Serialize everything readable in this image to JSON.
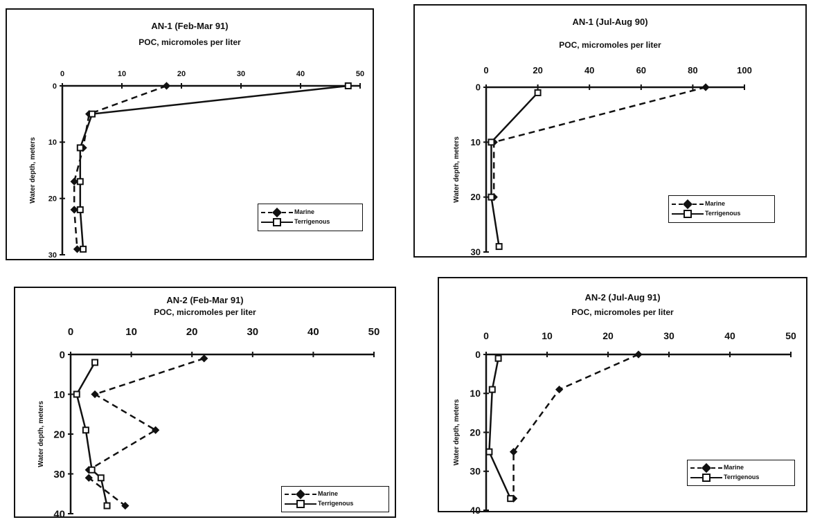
{
  "chart_data": [
    {
      "type": "line",
      "title": "AN-1 (Feb-Mar 91)",
      "subtitle": "POC, micromoles per liter",
      "xlabel": "POC, micromoles per liter",
      "ylabel": "Water depth, meters",
      "xlim": [
        0,
        50
      ],
      "ylim": [
        0,
        30
      ],
      "xticks": [
        "0",
        "10",
        "20",
        "30",
        "40",
        "50"
      ],
      "yticks": [
        "0",
        "10",
        "20",
        "30"
      ],
      "legend_position": "bottom-right",
      "series": [
        {
          "name": "Marine",
          "marker": "diamond",
          "dash": true,
          "points": [
            [
              17.5,
              0
            ],
            [
              4.5,
              5
            ],
            [
              3.5,
              11
            ],
            [
              2,
              17
            ],
            [
              2,
              22
            ],
            [
              2.5,
              29
            ]
          ]
        },
        {
          "name": "Terrigenous",
          "marker": "square",
          "dash": false,
          "points": [
            [
              48,
              0
            ],
            [
              5,
              5
            ],
            [
              3,
              11
            ],
            [
              3,
              17
            ],
            [
              3,
              22
            ],
            [
              3.5,
              29
            ]
          ]
        }
      ]
    },
    {
      "type": "line",
      "title": "AN-1 (Jul-Aug 90)",
      "subtitle": "POC, micromoles per liter",
      "xlabel": "POC, micromoles per liter",
      "ylabel": "Water depth, meters",
      "xlim": [
        0,
        100
      ],
      "ylim": [
        0,
        30
      ],
      "xticks": [
        "0",
        "20",
        "40",
        "60",
        "80",
        "100"
      ],
      "yticks": [
        "0",
        "10",
        "20",
        "30"
      ],
      "legend_position": "bottom-right",
      "series": [
        {
          "name": "Marine",
          "marker": "diamond",
          "dash": true,
          "points": [
            [
              85,
              0
            ],
            [
              3,
              10
            ],
            [
              3,
              20
            ]
          ]
        },
        {
          "name": "Terrigenous",
          "marker": "square",
          "dash": false,
          "points": [
            [
              20,
              1
            ],
            [
              2,
              10
            ],
            [
              2,
              20
            ],
            [
              5,
              29
            ]
          ]
        }
      ]
    },
    {
      "type": "line",
      "title": "AN-2 (Feb-Mar 91)",
      "subtitle": "POC, micromoles per liter",
      "xlabel": "POC, micromoles per liter",
      "ylabel": "Water depth, meters",
      "xlim": [
        0,
        50
      ],
      "ylim": [
        0,
        40
      ],
      "xticks": [
        "0",
        "10",
        "20",
        "30",
        "40",
        "50"
      ],
      "yticks": [
        "0",
        "10",
        "20",
        "30",
        "40"
      ],
      "legend_position": "bottom-right",
      "series": [
        {
          "name": "Marine",
          "marker": "diamond",
          "dash": true,
          "points": [
            [
              22,
              1
            ],
            [
              4,
              10
            ],
            [
              14,
              19
            ],
            [
              3,
              29
            ],
            [
              3,
              31
            ],
            [
              9,
              38
            ]
          ]
        },
        {
          "name": "Terrigenous",
          "marker": "square",
          "dash": false,
          "points": [
            [
              4,
              2
            ],
            [
              1,
              10
            ],
            [
              2.5,
              19
            ],
            [
              3.5,
              29
            ],
            [
              5,
              31
            ],
            [
              6,
              38
            ]
          ]
        }
      ]
    },
    {
      "type": "line",
      "title": "AN-2 (Jul-Aug 91)",
      "subtitle": "POC, micromoles per liter",
      "xlabel": "POC, micromoles per liter",
      "ylabel": "Water depth, meters",
      "xlim": [
        0,
        50
      ],
      "ylim": [
        0,
        40
      ],
      "xticks": [
        "0",
        "10",
        "20",
        "30",
        "40",
        "50"
      ],
      "yticks": [
        "0",
        "10",
        "20",
        "30",
        "40"
      ],
      "legend_position": "bottom-right",
      "series": [
        {
          "name": "Marine",
          "marker": "diamond",
          "dash": true,
          "points": [
            [
              25,
              0
            ],
            [
              12,
              9
            ],
            [
              4.5,
              25
            ],
            [
              4.5,
              37
            ]
          ]
        },
        {
          "name": "Terrigenous",
          "marker": "square",
          "dash": false,
          "points": [
            [
              2,
              1
            ],
            [
              1,
              9
            ],
            [
              0.5,
              25
            ],
            [
              4,
              37
            ]
          ]
        }
      ]
    }
  ]
}
